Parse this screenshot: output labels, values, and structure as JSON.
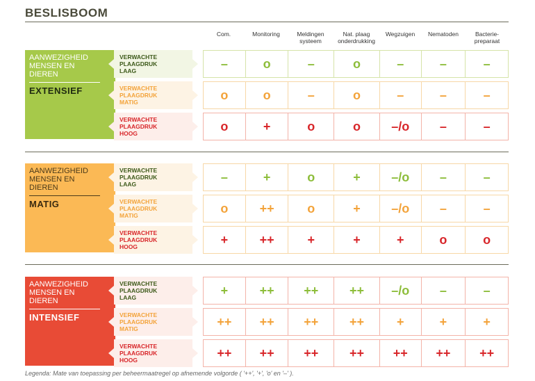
{
  "title": "BESLISBOOM",
  "columns": [
    "Com.",
    "Monitoring",
    "Meldingen\nsysteem",
    "Nat. plaag\nonderdrukking",
    "Wegzuigen",
    "Nematoden",
    "Bacterie-\npreparaat"
  ],
  "sections": [
    {
      "label": "AANWEZIGHEID\nMENSEN EN\nDIEREN",
      "level": "EXTENSIEF",
      "color": "#a6c94a",
      "rows": [
        {
          "label": "VERWACHTE\nPLAAGDRUK\nLAAG",
          "color": "#3d5a1a",
          "bg": "#f2f6e4",
          "border": "#d5e3a8",
          "values": [
            "–",
            "o",
            "–",
            "o",
            "–",
            "–",
            "–"
          ],
          "valcolor": "#8dbd3a"
        },
        {
          "label": "VERWACHTE\nPLAAGDRUK\nMATIG",
          "color": "#f3a33a",
          "bg": "#fdf3e4",
          "border": "#f7d7a6",
          "values": [
            "o",
            "o",
            "–",
            "o",
            "–",
            "–",
            "–"
          ],
          "valcolor": "#f3a33a"
        },
        {
          "label": "VERWACHTE\nPLAAGDRUK\nHOOG",
          "color": "#d8262a",
          "bg": "#fdeeea",
          "border": "#f3b3a8",
          "values": [
            "o",
            "+",
            "o",
            "o",
            "–/o",
            "–",
            "–"
          ],
          "valcolor": "#d8262a"
        }
      ]
    },
    {
      "label": "AANWEZIGHEID\nMENSEN EN\nDIEREN",
      "level": "MATIG",
      "color": "#fbb955",
      "rows": [
        {
          "label": "VERWACHTE\nPLAAGDRUK\nLAAG",
          "color": "#3d5a1a",
          "bg": "#fdf3e4",
          "border": "#f7d7a6",
          "values": [
            "–",
            "+",
            "o",
            "+",
            "–/o",
            "–",
            "–"
          ],
          "valcolor": "#8dbd3a"
        },
        {
          "label": "VERWACHTE\nPLAAGDRUK\nMATIG",
          "color": "#f3a33a",
          "bg": "#fdf3e4",
          "border": "#f7d7a6",
          "values": [
            "o",
            "++",
            "o",
            "+",
            "–/o",
            "–",
            "–"
          ],
          "valcolor": "#f3a33a"
        },
        {
          "label": "VERWACHTE\nPLAAGDRUK\nHOOG",
          "color": "#d8262a",
          "bg": "#fdf3e4",
          "border": "#f7d7a6",
          "values": [
            "+",
            "++",
            "+",
            "+",
            "+",
            "o",
            "o"
          ],
          "valcolor": "#d8262a"
        }
      ]
    },
    {
      "label": "AANWEZIGHEID\nMENSEN EN\nDIEREN",
      "level": "INTENSIEF",
      "color": "#e84b36",
      "rows": [
        {
          "label": "VERWACHTE\nPLAAGDRUK\nLAAG",
          "color": "#3d5a1a",
          "bg": "#fdeeea",
          "border": "#f3b3a8",
          "values": [
            "+",
            "++",
            "++",
            "++",
            "–/o",
            "–",
            "–"
          ],
          "valcolor": "#8dbd3a"
        },
        {
          "label": "VERWACHTE\nPLAAGDRUK\nMATIG",
          "color": "#f3a33a",
          "bg": "#fdeeea",
          "border": "#f3b3a8",
          "values": [
            "++",
            "++",
            "++",
            "++",
            "+",
            "+",
            "+"
          ],
          "valcolor": "#f3a33a"
        },
        {
          "label": "VERWACHTE\nPLAAGDRUK\nHOOG",
          "color": "#d8262a",
          "bg": "#fdeeea",
          "border": "#f3b3a8",
          "values": [
            "++",
            "++",
            "++",
            "++",
            "++",
            "++",
            "++"
          ],
          "valcolor": "#d8262a"
        }
      ]
    }
  ],
  "legend": "Legenda: Mate van toepassing per beheermaatregel op afnemende volgorde ( '++', '+', 'o' en '–' )."
}
